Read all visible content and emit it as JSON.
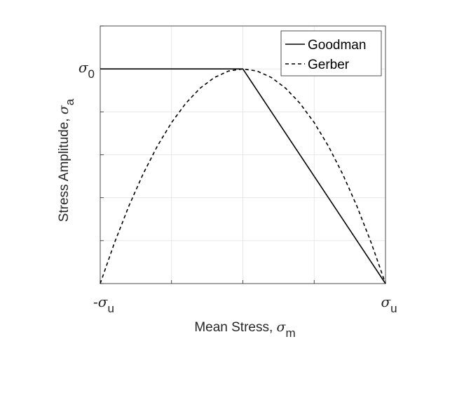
{
  "chart_data": {
    "type": "line",
    "x_axis": {
      "label_main": "Mean Stress, ",
      "label_symbol": "σ",
      "label_sub": "m",
      "range": [
        -1,
        1
      ],
      "ticks": [
        -1,
        -0.5,
        0,
        0.5,
        1
      ],
      "tick_labels": [
        {
          "x": -1,
          "main": "-σ",
          "sub": "u"
        },
        {
          "x": 1,
          "main": "σ",
          "sub": "u"
        }
      ]
    },
    "y_axis": {
      "label_main": "Stress Amplitude, ",
      "label_symbol": "σ",
      "label_sub": "a",
      "range": [
        0,
        1.2
      ],
      "ticks": [
        0,
        0.2,
        0.4,
        0.6,
        0.8,
        1.0,
        1.2
      ],
      "tick_labels": [
        {
          "y": 1.0,
          "main": "σ",
          "sub": "0"
        }
      ]
    },
    "grid": true,
    "legend_position": "top-right",
    "series": [
      {
        "name": "Goodman",
        "style": "solid",
        "color": "#000000",
        "x": [
          -1,
          0,
          1
        ],
        "y": [
          1,
          1,
          0
        ]
      },
      {
        "name": "Gerber",
        "style": "dashed",
        "color": "#000000",
        "x": [
          -1,
          -0.9,
          -0.8,
          -0.7,
          -0.6,
          -0.5,
          -0.4,
          -0.3,
          -0.2,
          -0.1,
          0,
          0.1,
          0.2,
          0.3,
          0.4,
          0.5,
          0.6,
          0.7,
          0.8,
          0.9,
          1
        ],
        "y": [
          0,
          0.19,
          0.36,
          0.51,
          0.64,
          0.75,
          0.84,
          0.91,
          0.96,
          0.99,
          1,
          0.99,
          0.96,
          0.91,
          0.84,
          0.75,
          0.64,
          0.51,
          0.36,
          0.19,
          0
        ]
      }
    ]
  }
}
